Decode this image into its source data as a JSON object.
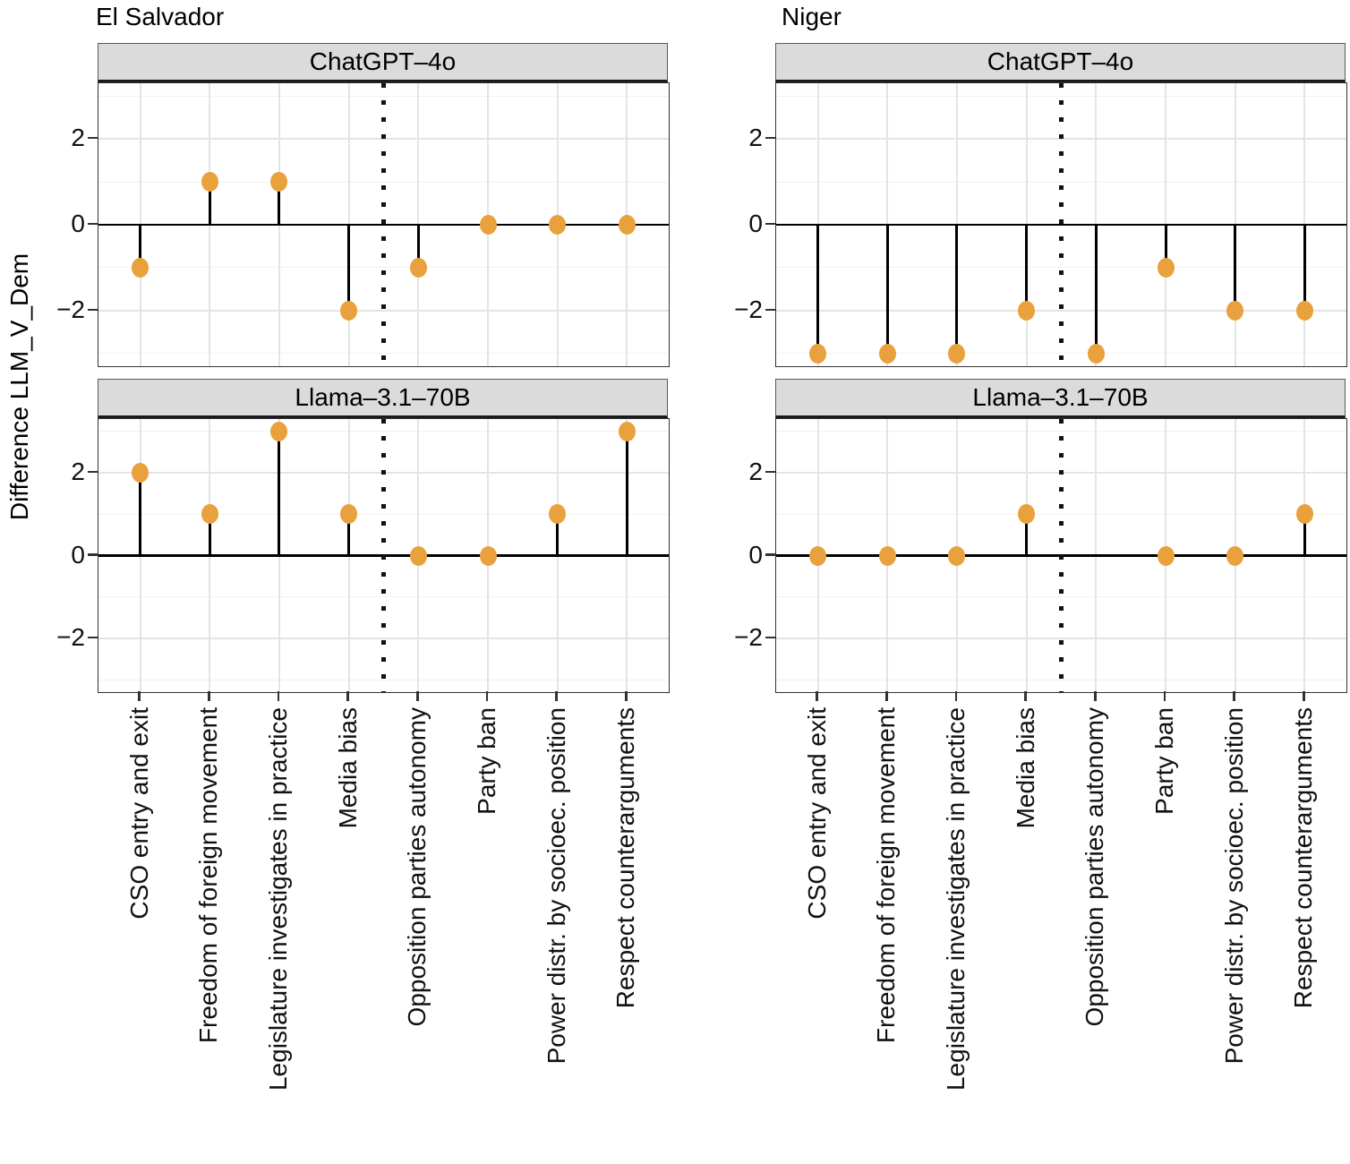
{
  "chart_data": {
    "type": "scatter",
    "subtype": "lollipop-stem-facets",
    "facet_columns": [
      "El Salvador",
      "Niger"
    ],
    "facet_rows": [
      "ChatGPT–4o",
      "Llama–3.1–70B"
    ],
    "categories": [
      "CSO entry and exit",
      "Freedom of foreign movement",
      "Legislature investigates in practice",
      "Media bias",
      "Opposition parties autonomy",
      "Party ban",
      "Power distr. by socioec. position",
      "Respect counterarguments"
    ],
    "series": [
      {
        "country": "El Salvador",
        "model": "ChatGPT–4o",
        "values": [
          -1,
          1,
          1,
          -2,
          -1,
          0,
          0,
          0
        ]
      },
      {
        "country": "Niger",
        "model": "ChatGPT–4o",
        "values": [
          -3,
          -3,
          -3,
          -2,
          -3,
          -1,
          -2,
          -2
        ]
      },
      {
        "country": "El Salvador",
        "model": "Llama–3.1–70B",
        "values": [
          2,
          1,
          3,
          1,
          0,
          0,
          1,
          3
        ]
      },
      {
        "country": "Niger",
        "model": "Llama–3.1–70B",
        "values": [
          0,
          0,
          0,
          1,
          null,
          0,
          0,
          1
        ]
      }
    ],
    "ylabel": "Difference LLM_V_Dem",
    "ytick_values": [
      2,
      0,
      -2
    ],
    "ytick_labels": [
      "2",
      "0",
      "−2"
    ],
    "ylim": [
      -3.3,
      3.3
    ],
    "grid": {
      "major": [
        -2,
        0,
        2
      ],
      "minor": [
        -3,
        -1,
        1,
        3
      ],
      "vertical_at_each_category": true
    },
    "zero_line": true,
    "divider_between": [
      "Media bias",
      "Opposition parties autonomy"
    ],
    "legend": "none",
    "colors": {
      "point": "#E8A13C",
      "stem": "#000000",
      "zero_line": "#000000",
      "divider": "#111111",
      "strip_bg": "#DBDBDB",
      "strip_border": "#595959",
      "panel_border": "#333333",
      "grid_major": "#E4E4E4",
      "grid_minor": "#F1F1F1",
      "text": "#000000"
    }
  }
}
